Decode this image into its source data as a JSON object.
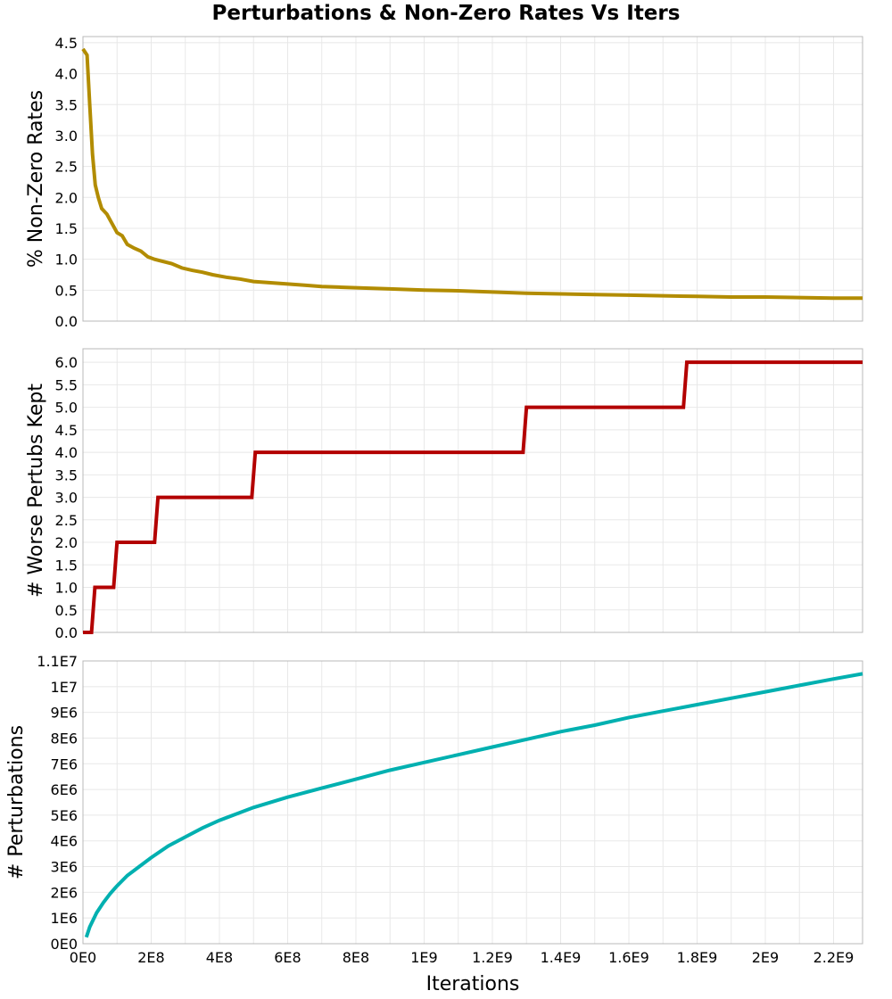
{
  "title": "Perturbations & Non-Zero Rates Vs Iters",
  "xlabel": "Iterations",
  "x_ticks": [
    "0E0",
    "2E8",
    "4E8",
    "6E8",
    "8E8",
    "1E9",
    "1.2E9",
    "1.4E9",
    "1.6E9",
    "1.8E9",
    "2E9",
    "2.2E9"
  ],
  "chart_data": [
    {
      "type": "line",
      "ylabel": "% Non-Zero Rates",
      "xlim": [
        0,
        2285000000
      ],
      "ylim": [
        0,
        4.6
      ],
      "y_ticks": [
        "0.0",
        "0.5",
        "1.0",
        "1.5",
        "2.0",
        "2.5",
        "3.0",
        "3.5",
        "4.0",
        "4.5"
      ],
      "color": "#b28c00",
      "series": [
        {
          "x": [
            0,
            12000000,
            20000000,
            28000000,
            36000000,
            45000000,
            55000000,
            70000000,
            85000000,
            100000000,
            115000000,
            130000000,
            150000000,
            170000000,
            190000000,
            210000000,
            230000000,
            260000000,
            290000000,
            320000000,
            350000000,
            380000000,
            420000000,
            460000000,
            500000000,
            550000000,
            600000000,
            650000000,
            700000000,
            750000000,
            800000000,
            850000000,
            900000000,
            1000000000,
            1100000000,
            1200000000,
            1300000000,
            1400000000,
            1500000000,
            1600000000,
            1700000000,
            1800000000,
            1900000000,
            2000000000,
            2100000000,
            2200000000,
            2285000000
          ],
          "y": [
            4.4,
            4.3,
            3.5,
            2.7,
            2.2,
            2.0,
            1.82,
            1.73,
            1.58,
            1.43,
            1.38,
            1.24,
            1.18,
            1.13,
            1.04,
            1.0,
            0.97,
            0.93,
            0.86,
            0.82,
            0.79,
            0.75,
            0.71,
            0.68,
            0.64,
            0.62,
            0.6,
            0.58,
            0.56,
            0.55,
            0.54,
            0.53,
            0.52,
            0.5,
            0.49,
            0.47,
            0.45,
            0.44,
            0.43,
            0.42,
            0.41,
            0.4,
            0.39,
            0.39,
            0.38,
            0.37,
            0.37
          ]
        }
      ]
    },
    {
      "type": "line",
      "ylabel": "# Worse Pertubs Kept",
      "xlim": [
        0,
        2285000000
      ],
      "ylim": [
        0,
        6.3
      ],
      "y_ticks": [
        "0.0",
        "0.5",
        "1.0",
        "1.5",
        "2.0",
        "2.5",
        "3.0",
        "3.5",
        "4.0",
        "4.5",
        "5.0",
        "5.5",
        "6.0"
      ],
      "color": "#b30000",
      "series": [
        {
          "x": [
            0,
            25000000,
            35000000,
            90000000,
            100000000,
            210000000,
            220000000,
            495000000,
            505000000,
            1290000000,
            1300000000,
            1760000000,
            1770000000,
            2285000000
          ],
          "y": [
            0,
            0,
            1,
            1,
            2,
            2,
            3,
            3,
            4,
            4,
            5,
            5,
            6,
            6
          ]
        }
      ]
    },
    {
      "type": "line",
      "ylabel": "# Perturbations",
      "xlim": [
        0,
        2285000000
      ],
      "ylim": [
        0,
        11000000
      ],
      "y_ticks": [
        "0E0",
        "1E6",
        "2E6",
        "3E6",
        "4E6",
        "5E6",
        "6E6",
        "7E6",
        "8E6",
        "9E6",
        "1E7",
        "1.1E7"
      ],
      "color": "#00b0b0",
      "series": [
        {
          "x": [
            10000000,
            20000000,
            40000000,
            60000000,
            80000000,
            100000000,
            130000000,
            160000000,
            200000000,
            250000000,
            300000000,
            350000000,
            400000000,
            450000000,
            500000000,
            600000000,
            700000000,
            800000000,
            900000000,
            1000000000,
            1100000000,
            1200000000,
            1300000000,
            1400000000,
            1500000000,
            1600000000,
            1700000000,
            1800000000,
            1900000000,
            2000000000,
            2100000000,
            2200000000,
            2285000000
          ],
          "y": [
            250000,
            650000,
            1200000,
            1600000,
            1950000,
            2250000,
            2650000,
            2950000,
            3350000,
            3800000,
            4150000,
            4500000,
            4800000,
            5050000,
            5300000,
            5700000,
            6050000,
            6400000,
            6750000,
            7050000,
            7350000,
            7650000,
            7950000,
            8250000,
            8500000,
            8800000,
            9050000,
            9300000,
            9550000,
            9800000,
            10050000,
            10300000,
            10500000
          ]
        }
      ]
    }
  ]
}
